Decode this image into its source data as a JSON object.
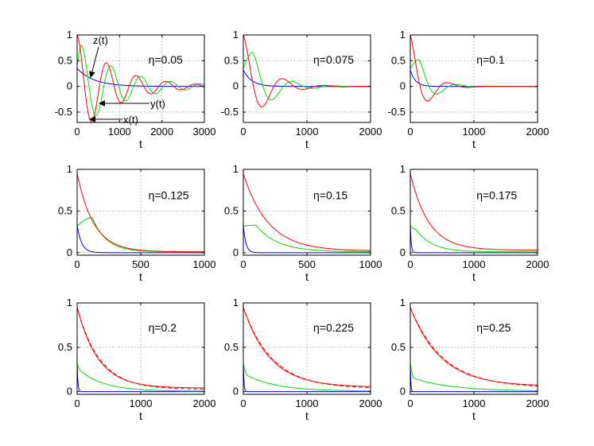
{
  "figure": {
    "x_label": "t"
  },
  "colors": {
    "x": "#ff0000",
    "y": "#00dd00",
    "z": "#0000ff",
    "frame": "#000000",
    "grid": "#999999"
  },
  "chart_data": [
    {
      "type": "line",
      "label": "η=0.05",
      "eta": 0.05,
      "xlim": [
        0,
        3000
      ],
      "ylim": [
        -0.7,
        1
      ],
      "xticks": [
        0,
        1000,
        2000,
        3000
      ],
      "yticks": [
        -0.5,
        0,
        0.5,
        1
      ],
      "x": {
        "a": 1.0,
        "tau": 900,
        "period": 700,
        "offset": 0.0,
        "dashed": false
      },
      "y": {
        "start": 0.38,
        "amp": 0.8,
        "tpeak": 105,
        "tau": 1000,
        "period": 700,
        "offset": 0.0
      },
      "z": {
        "start": 0.35,
        "tau": 400,
        "offset": 0.0
      },
      "annotations": [
        "z(t)",
        "y(t)",
        "x(t)"
      ]
    },
    {
      "type": "line",
      "label": "η=0.075",
      "eta": 0.075,
      "xlim": [
        0,
        2000
      ],
      "ylim": [
        -0.7,
        1
      ],
      "xticks": [
        0,
        1000,
        2000
      ],
      "yticks": [
        -0.5,
        0,
        0.5,
        1
      ],
      "x": {
        "a": 1.0,
        "tau": 330,
        "period": 640,
        "offset": 0.0,
        "dashed": false
      },
      "y": {
        "start": 0.35,
        "amp": 0.66,
        "tpeak": 150,
        "tau": 330,
        "period": 640,
        "offset": 0.0
      },
      "z": {
        "start": 0.32,
        "tau": 130,
        "offset": 0.0
      },
      "annotations": []
    },
    {
      "type": "line",
      "label": "η=0.1",
      "eta": 0.1,
      "xlim": [
        0,
        2000
      ],
      "ylim": [
        -0.7,
        1
      ],
      "xticks": [
        0,
        1000,
        2000
      ],
      "yticks": [
        -0.5,
        0,
        0.5,
        1
      ],
      "x": {
        "a": 1.0,
        "tau": 230,
        "period": 620,
        "offset": 0.0,
        "dashed": false
      },
      "y": {
        "start": 0.35,
        "amp": 0.52,
        "tpeak": 140,
        "tau": 230,
        "period": 620,
        "offset": 0.0
      },
      "z": {
        "start": 0.32,
        "tau": 80,
        "offset": 0.0
      },
      "annotations": []
    },
    {
      "type": "line",
      "label": "η=0.125",
      "eta": 0.125,
      "xlim": [
        0,
        1000
      ],
      "ylim": [
        -0.03,
        1
      ],
      "xticks": [
        0,
        500,
        1000
      ],
      "yticks": [
        0,
        0.5,
        1
      ],
      "x": {
        "a": 0.95,
        "tau": 130,
        "period": 0,
        "offset": 0.01,
        "dashed": false
      },
      "y": {
        "start": 0.32,
        "amp": 0.42,
        "tpeak": 120,
        "tau": 110,
        "period": 0,
        "offset": 0.01
      },
      "z": {
        "start": 0.33,
        "tau": 35,
        "offset": 0.0
      },
      "annotations": []
    },
    {
      "type": "line",
      "label": "η=0.15",
      "eta": 0.15,
      "xlim": [
        0,
        1000
      ],
      "ylim": [
        -0.03,
        1
      ],
      "xticks": [
        0,
        500,
        1000
      ],
      "yticks": [
        0,
        0.5,
        1
      ],
      "x": {
        "a": 0.95,
        "tau": 195,
        "period": 0,
        "offset": 0.02,
        "dashed": false
      },
      "y": {
        "start": 0.32,
        "amp": 0.33,
        "tpeak": 100,
        "tau": 170,
        "period": 0,
        "offset": 0.01
      },
      "z": {
        "start": 0.33,
        "tau": 20,
        "offset": 0.0
      },
      "annotations": []
    },
    {
      "type": "line",
      "label": "η=0.175",
      "eta": 0.175,
      "xlim": [
        0,
        2000
      ],
      "ylim": [
        -0.03,
        1
      ],
      "xticks": [
        0,
        1000,
        2000
      ],
      "yticks": [
        0,
        0.5,
        1
      ],
      "x": {
        "a": 0.95,
        "tau": 290,
        "period": 0,
        "offset": 0.03,
        "dashed": false
      },
      "y": {
        "start": 0.32,
        "amp": 0.28,
        "tpeak": 90,
        "tau": 250,
        "period": 0,
        "offset": 0.01
      },
      "z": {
        "start": 0.33,
        "tau": 15,
        "offset": 0.0
      },
      "annotations": []
    },
    {
      "type": "line",
      "label": "η=0.2",
      "eta": 0.2,
      "xlim": [
        0,
        2000
      ],
      "ylim": [
        -0.03,
        1
      ],
      "xticks": [
        0,
        1000,
        2000
      ],
      "yticks": [
        0,
        0.5,
        1
      ],
      "x": {
        "a": 0.95,
        "tau": 330,
        "period": 0,
        "offset": 0.04,
        "dashed": true
      },
      "y": {
        "start": 0.32,
        "amp": 0.22,
        "tpeak": 80,
        "tau": 380,
        "period": 0,
        "offset": 0.005
      },
      "z": {
        "start": 0.33,
        "tau": 12,
        "offset": 0.0
      },
      "annotations": []
    },
    {
      "type": "line",
      "label": "η=0.225",
      "eta": 0.225,
      "xlim": [
        0,
        2000
      ],
      "ylim": [
        -0.03,
        1
      ],
      "xticks": [
        0,
        1000,
        2000
      ],
      "yticks": [
        0,
        0.5,
        1
      ],
      "x": {
        "a": 0.95,
        "tau": 420,
        "period": 0,
        "offset": 0.05,
        "dashed": true
      },
      "y": {
        "start": 0.32,
        "amp": 0.18,
        "tpeak": 70,
        "tau": 480,
        "period": 0,
        "offset": 0.005
      },
      "z": {
        "start": 0.33,
        "tau": 10,
        "offset": 0.0
      },
      "annotations": []
    },
    {
      "type": "line",
      "label": "η=0.25",
      "eta": 0.25,
      "xlim": [
        0,
        2000
      ],
      "ylim": [
        -0.03,
        1
      ],
      "xticks": [
        0,
        1000,
        2000
      ],
      "yticks": [
        0,
        0.5,
        1
      ],
      "x": {
        "a": 0.95,
        "tau": 480,
        "period": 0,
        "offset": 0.06,
        "dashed": true
      },
      "y": {
        "start": 0.32,
        "amp": 0.15,
        "tpeak": 60,
        "tau": 600,
        "period": 0,
        "offset": 0.005
      },
      "z": {
        "start": 0.33,
        "tau": 8,
        "offset": 0.0
      },
      "annotations": []
    }
  ]
}
